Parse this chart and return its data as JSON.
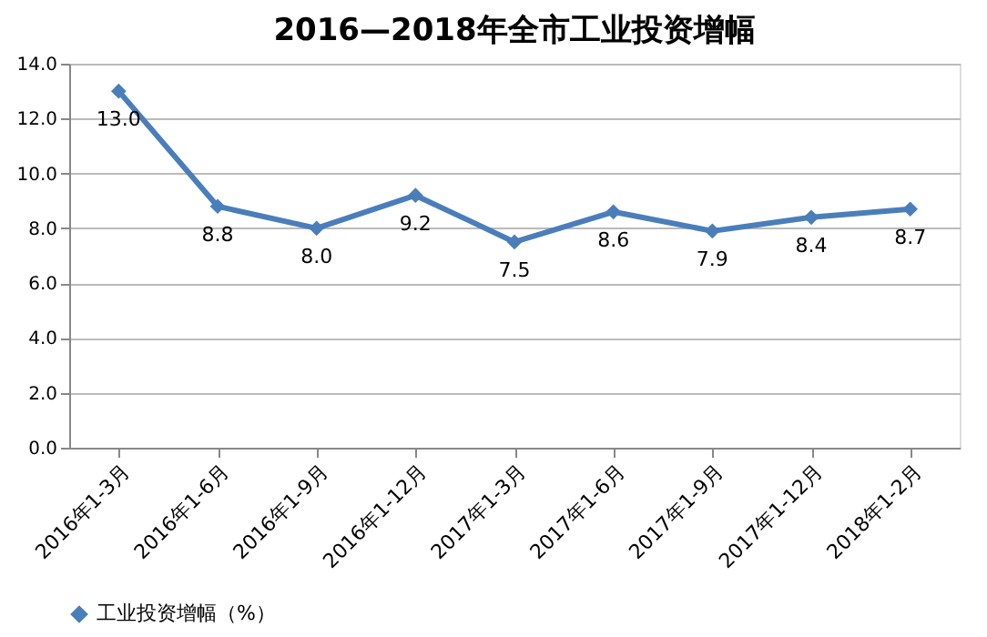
{
  "chart_data": {
    "type": "line",
    "title": "2016—2018年全市工业投资增幅",
    "categories": [
      "2016年1-3月",
      "2016年1-6月",
      "2016年1-9月",
      "2016年1-12月",
      "2017年1-3月",
      "2017年1-6月",
      "2017年1-9月",
      "2017年1-12月",
      "2018年1-2月"
    ],
    "series": [
      {
        "name": "工业投资增幅（%）",
        "color": "#4a7ebb",
        "values": [
          13.0,
          8.8,
          8.0,
          9.2,
          7.5,
          8.6,
          7.9,
          8.4,
          8.7
        ]
      }
    ],
    "ylim": [
      0,
      14
    ],
    "yticks": [
      {
        "value": 0,
        "label": "0.0"
      },
      {
        "value": 2,
        "label": "2.0"
      },
      {
        "value": 4,
        "label": "4.0"
      },
      {
        "value": 6,
        "label": "6.0"
      },
      {
        "value": 8,
        "label": "8.0"
      },
      {
        "value": 10,
        "label": "10.0"
      },
      {
        "value": 12,
        "label": "12.0"
      },
      {
        "value": 14,
        "label": "14.0"
      }
    ],
    "value_labels": [
      "13.0",
      "8.8",
      "8.0",
      "9.2",
      "7.5",
      "8.6",
      "7.9",
      "8.4",
      "8.7"
    ],
    "grid": "y",
    "legend": "bottom",
    "marker": "diamond",
    "line_style": "solid"
  }
}
